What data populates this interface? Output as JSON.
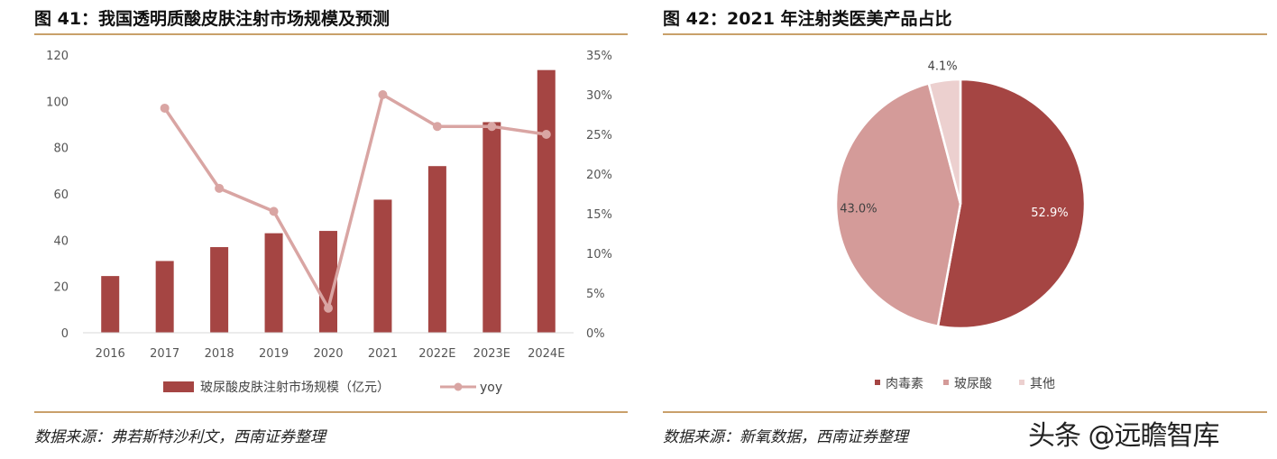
{
  "figure1": {
    "title": "图 41：我国透明质酸皮肤注射市场规模及预测",
    "source": "数据来源：弗若斯特沙利文，西南证券整理"
  },
  "figure2": {
    "title": "图 42：2021 年注射类医美产品占比",
    "source": "数据来源：新氧数据，西南证券整理"
  },
  "watermark": "头条 @远瞻智库",
  "colors": {
    "bar": "#a54543",
    "line": "#d9a5a3",
    "pie_botox": "#a54543",
    "pie_ha": "#d49b99",
    "pie_other": "#ecd0cf",
    "rule": "#c9a06a"
  },
  "chart_data": [
    {
      "type": "bar+line",
      "categories": [
        "2016",
        "2017",
        "2018",
        "2019",
        "2020",
        "2021",
        "2022E",
        "2023E",
        "2024E"
      ],
      "series": [
        {
          "name": "玻尿酸皮肤注射市场规模（亿元）",
          "type": "bar",
          "axis": "left",
          "values": [
            24.5,
            31,
            37,
            43,
            44,
            57.5,
            72,
            91,
            113.5
          ]
        },
        {
          "name": "yoy",
          "type": "line",
          "axis": "right",
          "values": [
            null,
            28.3,
            18.2,
            15.3,
            3.1,
            30.0,
            26.0,
            26.0,
            25.0
          ]
        }
      ],
      "ylim_left": [
        0,
        120
      ],
      "yticks_left": [
        "0",
        "20",
        "40",
        "60",
        "80",
        "100",
        "120"
      ],
      "ylim_right": [
        0,
        35
      ],
      "yticks_right": [
        "0%",
        "5%",
        "10%",
        "15%",
        "20%",
        "25%",
        "30%",
        "35%"
      ],
      "legend_position": "bottom"
    },
    {
      "type": "pie",
      "slices": [
        {
          "name": "肉毒素",
          "value": 52.9,
          "label": "52.9%"
        },
        {
          "name": "玻尿酸",
          "value": 43.0,
          "label": "43.0%"
        },
        {
          "name": "其他",
          "value": 4.1,
          "label": "4.1%"
        }
      ],
      "legend_position": "bottom"
    }
  ]
}
